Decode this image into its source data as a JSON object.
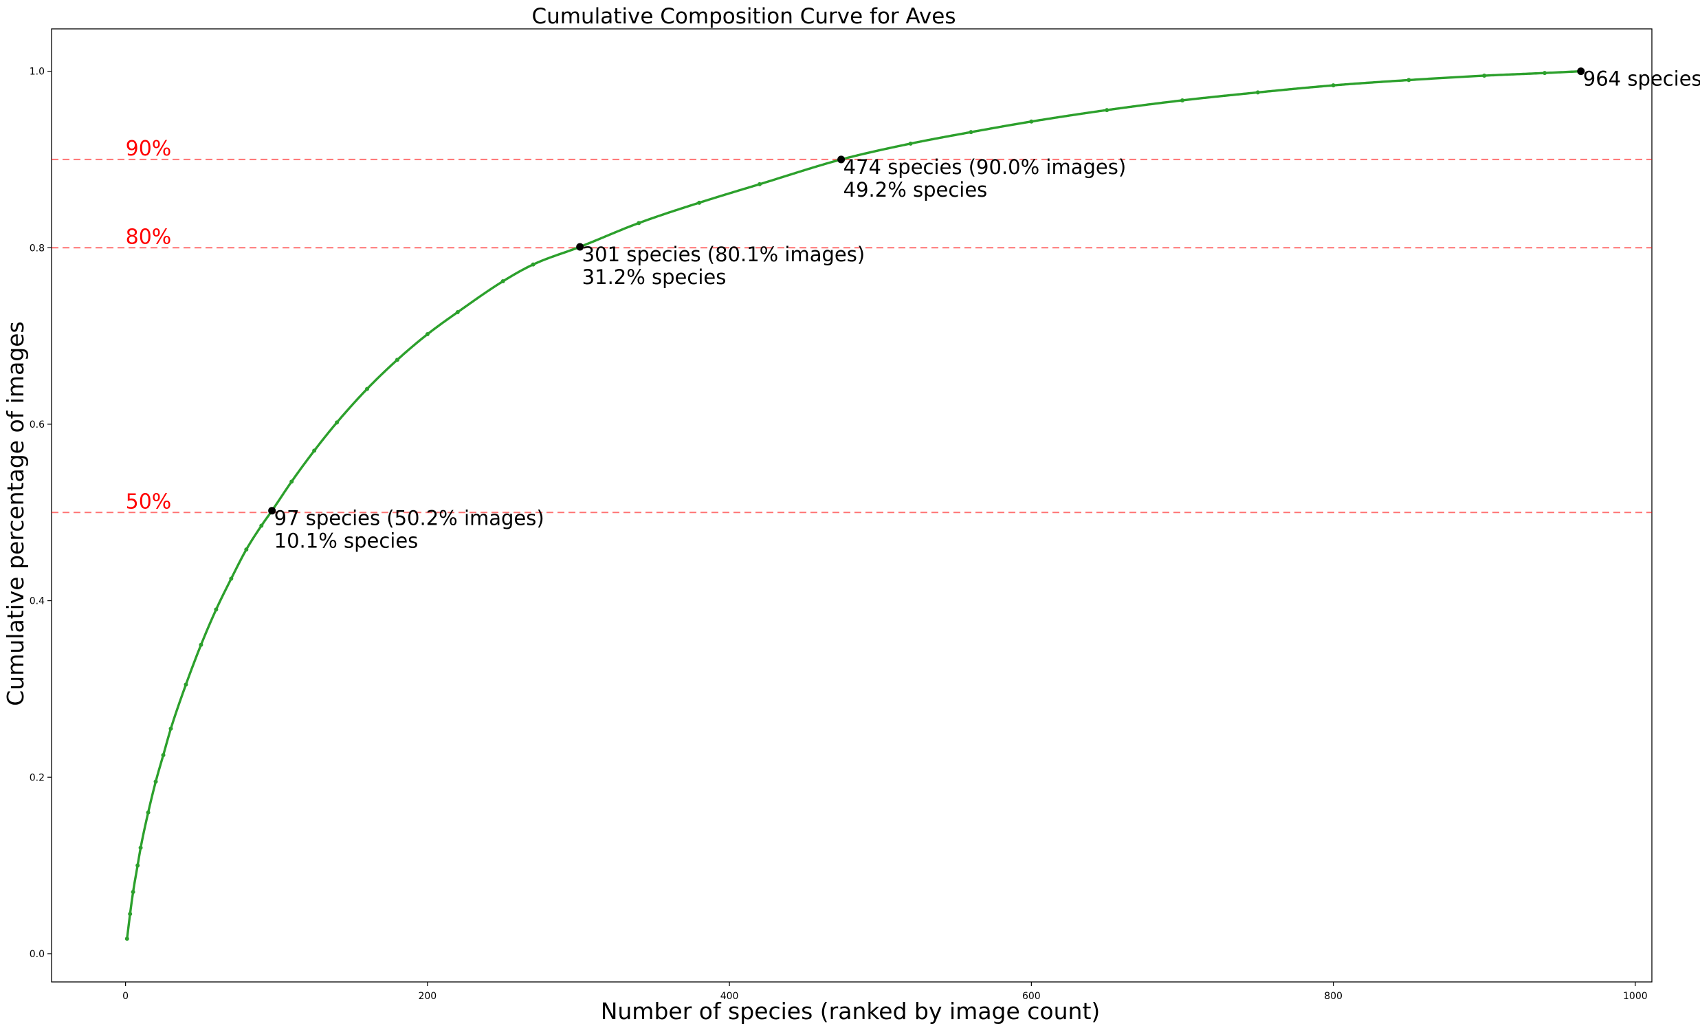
{
  "chart_data": {
    "type": "line",
    "title": "Cumulative Composition Curve for Aves",
    "xlabel": "Number of species (ranked by image count)",
    "ylabel": "Cumulative percentage of images",
    "xlim": [
      -49,
      1011
    ],
    "ylim": [
      -0.032,
      1.048
    ],
    "grid": false,
    "xticks": [
      0,
      200,
      400,
      600,
      800,
      1000
    ],
    "xtick_labels": [
      "0",
      "200",
      "400",
      "600",
      "800",
      "1000"
    ],
    "yticks": [
      0.0,
      0.2,
      0.4,
      0.6,
      0.8,
      1.0
    ],
    "ytick_labels": [
      "0.0",
      "0.2",
      "0.4",
      "0.6",
      "0.8",
      "1.0"
    ],
    "series": [
      {
        "color": "#2ca02c",
        "marker": "dot",
        "x": [
          1,
          3,
          5,
          8,
          10,
          15,
          20,
          25,
          30,
          40,
          50,
          60,
          70,
          80,
          90,
          97,
          110,
          125,
          140,
          160,
          180,
          200,
          220,
          250,
          270,
          301,
          340,
          380,
          420,
          474,
          520,
          560,
          600,
          650,
          700,
          750,
          800,
          850,
          900,
          940,
          964
        ],
        "y": [
          0.017,
          0.045,
          0.07,
          0.1,
          0.12,
          0.16,
          0.195,
          0.225,
          0.255,
          0.305,
          0.35,
          0.39,
          0.425,
          0.458,
          0.485,
          0.502,
          0.535,
          0.57,
          0.602,
          0.64,
          0.673,
          0.702,
          0.727,
          0.762,
          0.781,
          0.801,
          0.828,
          0.851,
          0.872,
          0.9,
          0.918,
          0.931,
          0.943,
          0.956,
          0.967,
          0.976,
          0.984,
          0.99,
          0.995,
          0.998,
          1.0
        ]
      }
    ],
    "thresholds": [
      {
        "y": 0.5,
        "label": "50%",
        "color": "#ff0000"
      },
      {
        "y": 0.8,
        "label": "80%",
        "color": "#ff0000"
      },
      {
        "y": 0.9,
        "label": "90%",
        "color": "#ff0000"
      }
    ],
    "annotations": [
      {
        "x": 97,
        "y": 0.502,
        "lines": [
          "97 species (50.2% images)",
          "10.1% species"
        ]
      },
      {
        "x": 301,
        "y": 0.801,
        "lines": [
          "301 species (80.1% images)",
          "31.2% species"
        ]
      },
      {
        "x": 474,
        "y": 0.9,
        "lines": [
          "474 species (90.0% images)",
          "49.2% species"
        ]
      },
      {
        "x": 964,
        "y": 1.0,
        "lines": [
          "964 species"
        ]
      }
    ]
  }
}
